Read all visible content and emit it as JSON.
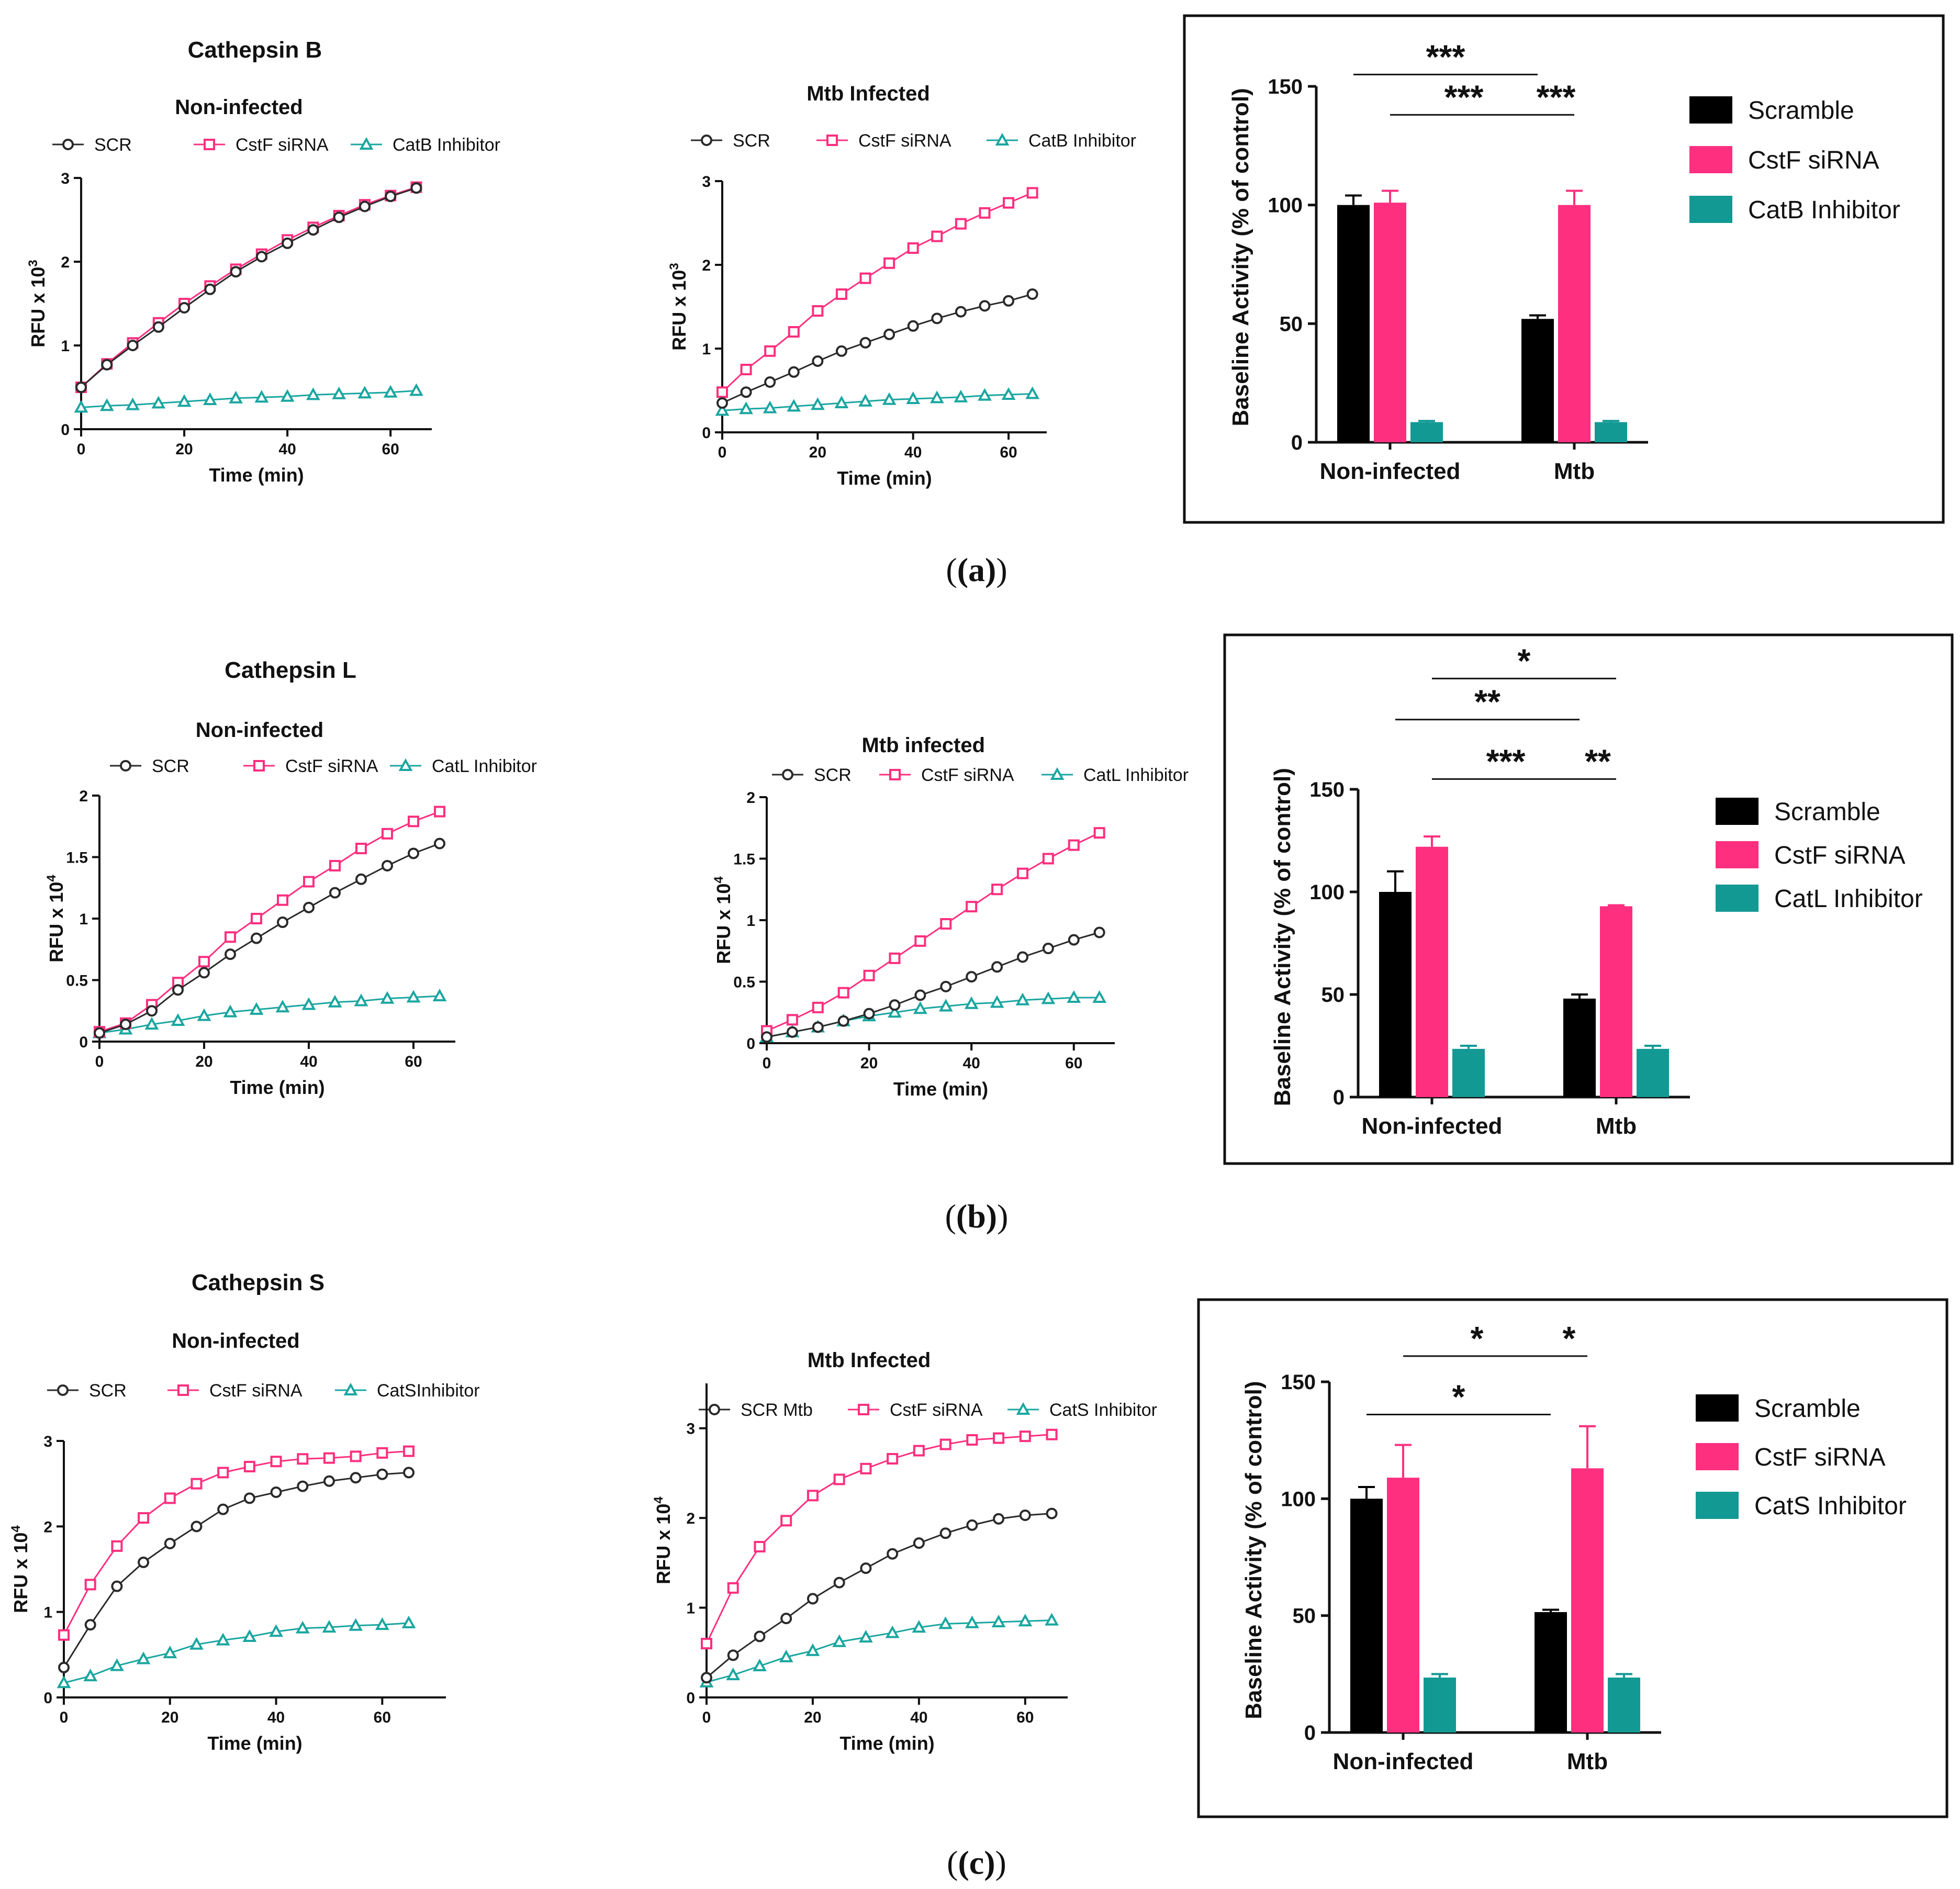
{
  "colors": {
    "scr": "#2a2a2a",
    "cstf": "#ff2f7f",
    "inh": "#1aa6a0",
    "bar_scr": "#000000",
    "bar_cstf": "#ff2f7f",
    "bar_inh": "#129994"
  },
  "captions": [
    "(a)",
    "(b)",
    "(c)"
  ],
  "chart_data": [
    {
      "id": "a-noninf",
      "type": "line",
      "panel_title": "Cathepsin B",
      "title": "Non-infected",
      "xlabel": "Time (min)",
      "ylabel": "RFU x 10",
      "ylabel_exp": "3",
      "xlim": [
        0,
        68
      ],
      "ylim": [
        0,
        3
      ],
      "xticks": [
        0,
        20,
        40,
        60
      ],
      "yticks": [
        0,
        1,
        2,
        3
      ],
      "x": [
        0,
        5,
        10,
        15,
        20,
        25,
        30,
        35,
        40,
        45,
        50,
        55,
        60,
        65
      ],
      "series": [
        {
          "name": "SCR",
          "key": "scr",
          "marker": "circle",
          "values": [
            0.5,
            0.77,
            1.0,
            1.22,
            1.45,
            1.67,
            1.88,
            2.06,
            2.22,
            2.38,
            2.53,
            2.66,
            2.78,
            2.88
          ]
        },
        {
          "name": "CstF siRNA",
          "key": "cstf",
          "marker": "square",
          "values": [
            0.5,
            0.78,
            1.03,
            1.27,
            1.5,
            1.71,
            1.91,
            2.09,
            2.26,
            2.41,
            2.55,
            2.68,
            2.79,
            2.89
          ]
        },
        {
          "name": "CatB Inhibitor",
          "key": "inh",
          "marker": "triangle",
          "values": [
            0.26,
            0.28,
            0.29,
            0.31,
            0.33,
            0.35,
            0.37,
            0.38,
            0.39,
            0.41,
            0.42,
            0.43,
            0.44,
            0.46
          ]
        }
      ]
    },
    {
      "id": "a-mtb",
      "type": "line",
      "title": "Mtb Infected",
      "xlabel": "Time (min)",
      "ylabel": "RFU x 10",
      "ylabel_exp": "3",
      "xlim": [
        0,
        68
      ],
      "ylim": [
        0,
        3
      ],
      "xticks": [
        0,
        20,
        40,
        60
      ],
      "yticks": [
        0,
        1,
        2,
        3
      ],
      "x": [
        0,
        5,
        10,
        15,
        20,
        25,
        30,
        35,
        40,
        45,
        50,
        55,
        60,
        65
      ],
      "series": [
        {
          "name": "SCR",
          "key": "scr",
          "marker": "circle",
          "values": [
            0.35,
            0.48,
            0.6,
            0.72,
            0.85,
            0.97,
            1.07,
            1.17,
            1.27,
            1.36,
            1.44,
            1.51,
            1.57,
            1.65
          ]
        },
        {
          "name": "CstF siRNA",
          "key": "cstf",
          "marker": "square",
          "values": [
            0.48,
            0.75,
            0.97,
            1.2,
            1.45,
            1.65,
            1.84,
            2.02,
            2.2,
            2.34,
            2.49,
            2.62,
            2.74,
            2.86
          ]
        },
        {
          "name": "CatB Inhibitor",
          "key": "inh",
          "marker": "triangle",
          "values": [
            0.26,
            0.28,
            0.29,
            0.31,
            0.33,
            0.35,
            0.37,
            0.39,
            0.4,
            0.41,
            0.42,
            0.44,
            0.45,
            0.46
          ]
        }
      ]
    },
    {
      "id": "a-bar",
      "type": "bar",
      "ylabel": "Baseline Activity (% of control)",
      "ylim": [
        0,
        150
      ],
      "yticks": [
        0,
        50,
        100,
        150
      ],
      "categories": [
        "Non-infected",
        "Mtb"
      ],
      "series": [
        {
          "name": "Scramble",
          "key": "bar_scr",
          "values": [
            100,
            52
          ],
          "errors": [
            4,
            1.5
          ]
        },
        {
          "name": "CstF siRNA",
          "key": "bar_cstf",
          "values": [
            101,
            100
          ],
          "errors": [
            5,
            6
          ]
        },
        {
          "name": "CatB Inhibitor",
          "key": "bar_inh",
          "values": [
            8.5,
            8.5
          ],
          "errors": [
            0.5,
            0.5
          ]
        }
      ],
      "brackets": [
        {
          "label": "***",
          "from": [
            0,
            0
          ],
          "to": [
            1,
            0
          ],
          "y": 155
        },
        {
          "label": "***",
          "from": [
            0,
            1
          ],
          "to": [
            1,
            0
          ],
          "y": 138
        },
        {
          "label": "***",
          "from": [
            1,
            0
          ],
          "to": [
            1,
            1
          ],
          "y": 138
        }
      ]
    },
    {
      "id": "b-noninf",
      "type": "line",
      "panel_title": "Cathepsin L",
      "title": "Non-infected",
      "xlabel": "Time (min)",
      "ylabel": "RFU x 10",
      "ylabel_exp": "4",
      "xlim": [
        0,
        68
      ],
      "ylim": [
        0,
        2
      ],
      "xticks": [
        0,
        20,
        40,
        60
      ],
      "yticks": [
        0,
        0.5,
        1,
        1.5,
        2
      ],
      "x": [
        0,
        5,
        10,
        15,
        20,
        25,
        30,
        35,
        40,
        45,
        50,
        55,
        60,
        65
      ],
      "series": [
        {
          "name": "SCR",
          "key": "scr",
          "marker": "circle",
          "values": [
            0.07,
            0.14,
            0.25,
            0.42,
            0.56,
            0.71,
            0.84,
            0.97,
            1.09,
            1.21,
            1.32,
            1.43,
            1.53,
            1.61
          ]
        },
        {
          "name": "CstF siRNA",
          "key": "cstf",
          "marker": "square",
          "values": [
            0.08,
            0.15,
            0.3,
            0.48,
            0.65,
            0.85,
            1.0,
            1.15,
            1.3,
            1.43,
            1.57,
            1.69,
            1.79,
            1.87
          ]
        },
        {
          "name": "CatL Inhibitor",
          "key": "inh",
          "marker": "triangle",
          "values": [
            0.07,
            0.1,
            0.14,
            0.17,
            0.21,
            0.24,
            0.26,
            0.28,
            0.3,
            0.32,
            0.33,
            0.35,
            0.36,
            0.37
          ]
        }
      ]
    },
    {
      "id": "b-mtb",
      "type": "line",
      "title": "Mtb infected",
      "xlabel": "Time (min)",
      "ylabel": "RFU x 10",
      "ylabel_exp": "4",
      "xlim": [
        0,
        68
      ],
      "ylim": [
        0,
        2
      ],
      "xticks": [
        0,
        20,
        40,
        60
      ],
      "yticks": [
        0,
        0.5,
        1,
        1.5,
        2
      ],
      "x": [
        0,
        5,
        10,
        15,
        20,
        25,
        30,
        35,
        40,
        45,
        50,
        55,
        60,
        65
      ],
      "series": [
        {
          "name": "SCR",
          "key": "scr",
          "marker": "circle",
          "values": [
            0.05,
            0.09,
            0.13,
            0.18,
            0.24,
            0.31,
            0.39,
            0.46,
            0.54,
            0.62,
            0.7,
            0.77,
            0.84,
            0.9
          ]
        },
        {
          "name": "CstF siRNA",
          "key": "cstf",
          "marker": "square",
          "values": [
            0.1,
            0.19,
            0.29,
            0.41,
            0.55,
            0.69,
            0.83,
            0.97,
            1.11,
            1.25,
            1.38,
            1.5,
            1.61,
            1.71
          ]
        },
        {
          "name": "CatL Inhibitor",
          "key": "inh",
          "marker": "triangle",
          "values": [
            0.05,
            0.09,
            0.13,
            0.18,
            0.22,
            0.25,
            0.28,
            0.3,
            0.32,
            0.33,
            0.35,
            0.36,
            0.37,
            0.37
          ]
        }
      ]
    },
    {
      "id": "b-bar",
      "type": "bar",
      "ylabel": "Baseline Activity (% of control)",
      "ylim": [
        0,
        150
      ],
      "yticks": [
        0,
        50,
        100,
        150
      ],
      "categories": [
        "Non-infected",
        "Mtb"
      ],
      "series": [
        {
          "name": "Scramble",
          "key": "bar_scr",
          "values": [
            100,
            48
          ],
          "errors": [
            10,
            2
          ]
        },
        {
          "name": "CstF siRNA",
          "key": "bar_cstf",
          "values": [
            122,
            93
          ],
          "errors": [
            5,
            0.5
          ]
        },
        {
          "name": "CatL Inhibitor",
          "key": "bar_inh",
          "values": [
            23.5,
            23.5
          ],
          "errors": [
            1.5,
            1.5
          ]
        }
      ],
      "brackets": [
        {
          "label": "*",
          "from": [
            0,
            1
          ],
          "to": [
            1,
            1
          ],
          "y": 204
        },
        {
          "label": "**",
          "from": [
            0,
            0
          ],
          "to": [
            1,
            0
          ],
          "y": 184
        },
        {
          "label": "***",
          "from": [
            0,
            1
          ],
          "to": [
            1,
            0
          ],
          "y": 155
        },
        {
          "label": "**",
          "from": [
            1,
            0
          ],
          "to": [
            1,
            1
          ],
          "y": 155
        }
      ]
    },
    {
      "id": "c-noninf",
      "type": "line",
      "panel_title": "Cathepsin S",
      "title": "Non-infected",
      "xlabel": "Time (min)",
      "ylabel": "RFU x 10",
      "ylabel_exp": "4",
      "xlim": [
        0,
        72
      ],
      "ylim": [
        0,
        3
      ],
      "xticks": [
        0,
        20,
        40,
        60
      ],
      "yticks": [
        0,
        1,
        2,
        3
      ],
      "x": [
        0,
        5,
        10,
        15,
        20,
        25,
        30,
        35,
        40,
        45,
        50,
        55,
        60,
        65
      ],
      "series": [
        {
          "name": "SCR",
          "key": "scr",
          "marker": "circle",
          "values": [
            0.35,
            0.85,
            1.3,
            1.58,
            1.8,
            2.0,
            2.2,
            2.33,
            2.4,
            2.47,
            2.53,
            2.57,
            2.61,
            2.63
          ]
        },
        {
          "name": "CstF siRNA",
          "key": "cstf",
          "marker": "square",
          "values": [
            0.73,
            1.32,
            1.77,
            2.1,
            2.33,
            2.5,
            2.63,
            2.7,
            2.76,
            2.79,
            2.8,
            2.82,
            2.86,
            2.88
          ]
        },
        {
          "name": "CatSInhibitor",
          "key": "inh",
          "marker": "triangle",
          "values": [
            0.17,
            0.25,
            0.37,
            0.45,
            0.52,
            0.62,
            0.67,
            0.71,
            0.77,
            0.81,
            0.82,
            0.84,
            0.85,
            0.87
          ]
        }
      ]
    },
    {
      "id": "c-mtb",
      "type": "line",
      "title": "Mtb Infected",
      "xlabel": "Time (min)",
      "ylabel": "RFU x 10",
      "ylabel_exp": "4",
      "xlim": [
        0,
        68
      ],
      "ylim": [
        0,
        3.5
      ],
      "xticks": [
        0,
        20,
        40,
        60
      ],
      "yticks": [
        0,
        1,
        2,
        3
      ],
      "x": [
        0,
        5,
        10,
        15,
        20,
        25,
        30,
        35,
        40,
        45,
        50,
        55,
        60,
        65
      ],
      "series": [
        {
          "name": "SCR Mtb",
          "key": "scr",
          "marker": "circle",
          "values": [
            0.22,
            0.47,
            0.68,
            0.88,
            1.1,
            1.28,
            1.44,
            1.6,
            1.72,
            1.83,
            1.92,
            1.99,
            2.03,
            2.05
          ]
        },
        {
          "name": "CstF siRNA",
          "key": "cstf",
          "marker": "square",
          "values": [
            0.6,
            1.22,
            1.68,
            1.97,
            2.25,
            2.43,
            2.55,
            2.66,
            2.75,
            2.82,
            2.87,
            2.89,
            2.91,
            2.93
          ]
        },
        {
          "name": "CatS Inhibitor",
          "key": "inh",
          "marker": "triangle",
          "values": [
            0.17,
            0.25,
            0.35,
            0.45,
            0.52,
            0.62,
            0.67,
            0.72,
            0.78,
            0.82,
            0.83,
            0.84,
            0.85,
            0.86
          ]
        }
      ]
    },
    {
      "id": "c-bar",
      "type": "bar",
      "ylabel": "Baseline Activity (% of control)",
      "ylim": [
        0,
        150
      ],
      "yticks": [
        0,
        50,
        100,
        150
      ],
      "categories": [
        "Non-infected",
        "Mtb"
      ],
      "series": [
        {
          "name": "Scramble",
          "key": "bar_scr",
          "values": [
            100,
            51.5
          ],
          "errors": [
            5,
            1
          ]
        },
        {
          "name": "CstF siRNA",
          "key": "bar_cstf",
          "values": [
            109,
            113
          ],
          "errors": [
            14,
            18
          ]
        },
        {
          "name": "CatS Inhibitor",
          "key": "bar_inh",
          "values": [
            23.5,
            23.5
          ],
          "errors": [
            1.5,
            1.5
          ]
        }
      ],
      "brackets": [
        {
          "label": "*",
          "from": [
            0,
            1
          ],
          "to": [
            1,
            0
          ],
          "y": 161
        },
        {
          "label": "*",
          "from": [
            1,
            0
          ],
          "to": [
            1,
            1
          ],
          "y": 161
        },
        {
          "label": "*",
          "from": [
            0,
            0
          ],
          "to": [
            1,
            0
          ],
          "y": 136
        }
      ]
    }
  ]
}
